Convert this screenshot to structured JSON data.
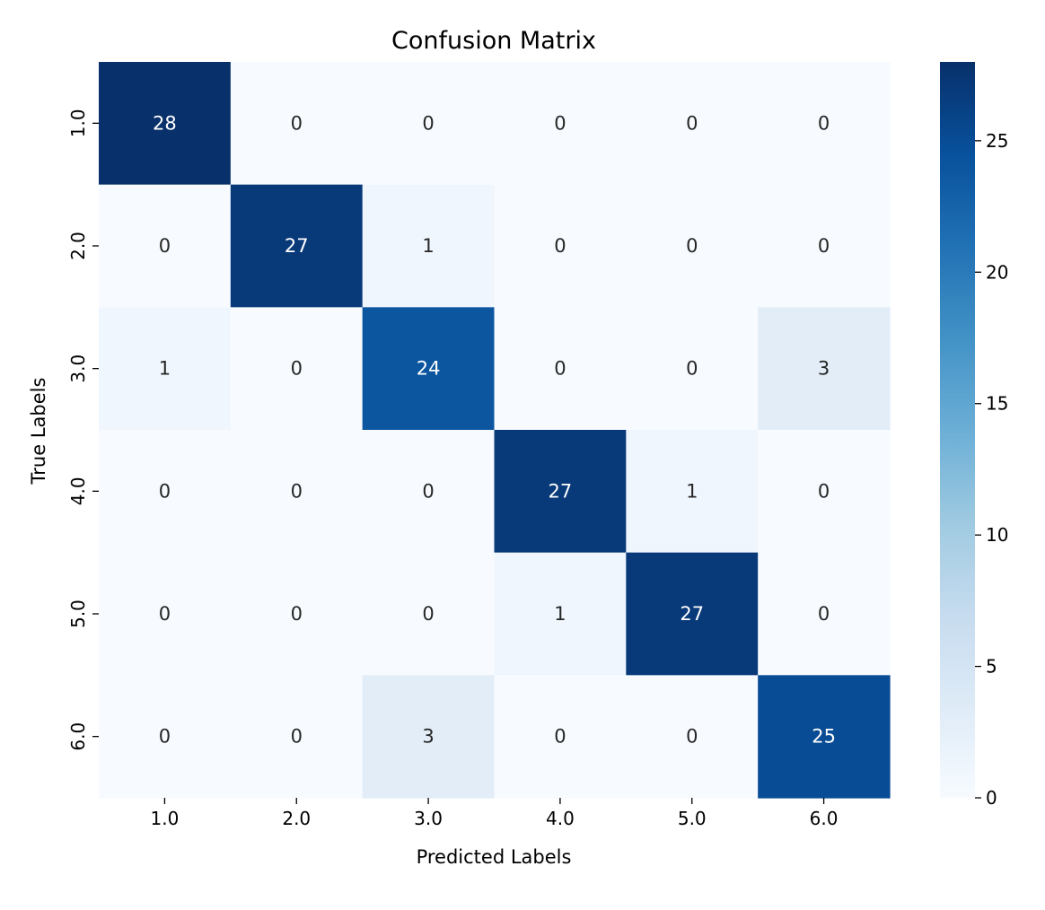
{
  "chart_data": {
    "type": "heatmap",
    "title": "Confusion Matrix",
    "xlabel": "Predicted Labels",
    "ylabel": "True Labels",
    "x_categories": [
      "1.0",
      "2.0",
      "3.0",
      "4.0",
      "5.0",
      "6.0"
    ],
    "y_categories": [
      "1.0",
      "2.0",
      "3.0",
      "4.0",
      "5.0",
      "6.0"
    ],
    "values": [
      [
        28,
        0,
        0,
        0,
        0,
        0
      ],
      [
        0,
        27,
        1,
        0,
        0,
        0
      ],
      [
        1,
        0,
        24,
        0,
        0,
        3
      ],
      [
        0,
        0,
        0,
        27,
        1,
        0
      ],
      [
        0,
        0,
        0,
        1,
        27,
        0
      ],
      [
        0,
        0,
        3,
        0,
        0,
        25
      ]
    ],
    "colormap": "Blues",
    "color_range": [
      0,
      28
    ],
    "colorbar_ticks": [
      0,
      5,
      10,
      15,
      20,
      25
    ],
    "annotations": true,
    "grid": false,
    "legend": "colorbar-right"
  }
}
